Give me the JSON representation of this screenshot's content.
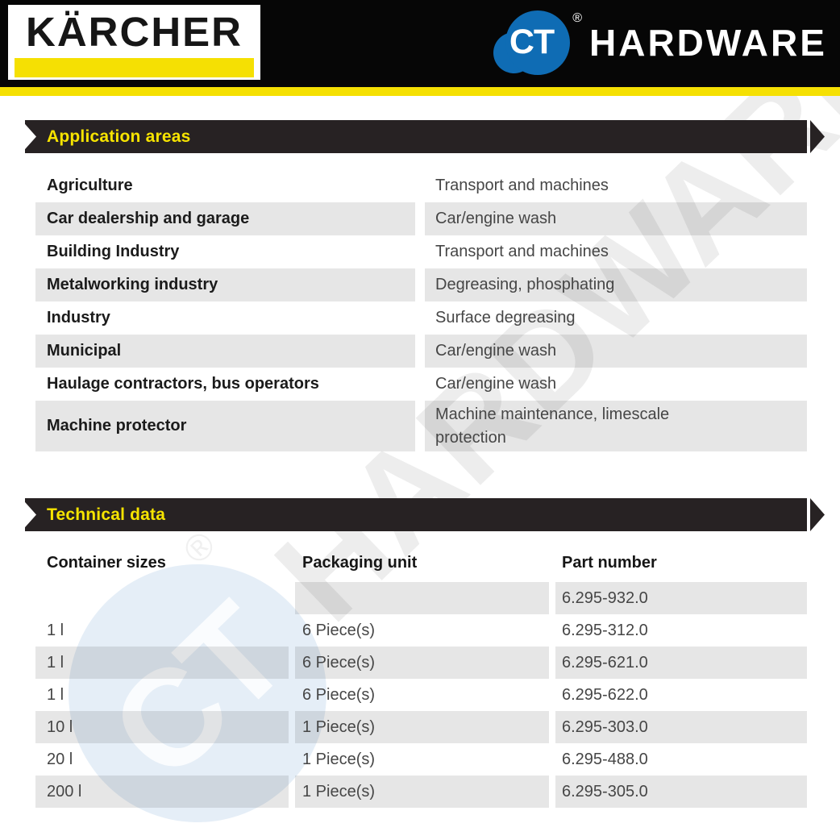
{
  "header": {
    "karcher": "KÄRCHER",
    "ct": "CT",
    "registered": "®",
    "hardware": "HARDWARE"
  },
  "application": {
    "title": "Application areas",
    "rows": [
      {
        "area": "Agriculture",
        "use": "Transport and machines"
      },
      {
        "area": "Car dealership and garage",
        "use": "Car/engine wash"
      },
      {
        "area": "Building Industry",
        "use": "Transport and machines"
      },
      {
        "area": "Metalworking industry",
        "use": "Degreasing, phosphating"
      },
      {
        "area": "Industry",
        "use": "Surface degreasing"
      },
      {
        "area": "Municipal",
        "use": "Car/engine wash"
      },
      {
        "area": "Haulage contractors, bus operators",
        "use": "Car/engine wash"
      },
      {
        "area": "Machine protector",
        "use": "Machine maintenance, limescale protection"
      }
    ]
  },
  "technical": {
    "title": "Technical data",
    "columns": [
      "Container sizes",
      "Packaging unit",
      "Part number"
    ],
    "rows": [
      {
        "size": "",
        "packaging": "",
        "part": "6.295-932.0"
      },
      {
        "size": "1 l",
        "packaging": "6 Piece(s)",
        "part": "6.295-312.0"
      },
      {
        "size": "1 l",
        "packaging": "6 Piece(s)",
        "part": "6.295-621.0"
      },
      {
        "size": "1 l",
        "packaging": "6 Piece(s)",
        "part": "6.295-622.0"
      },
      {
        "size": "10 l",
        "packaging": "1 Piece(s)",
        "part": "6.295-303.0"
      },
      {
        "size": "20 l",
        "packaging": "1 Piece(s)",
        "part": "6.295-488.0"
      },
      {
        "size": "200 l",
        "packaging": "1 Piece(s)",
        "part": "6.295-305.0"
      }
    ]
  },
  "watermark": {
    "ct": "CT",
    "text": "HARDWARE",
    "registered": "®"
  },
  "colors": {
    "karcher_yellow": "#f5e003",
    "banner_black": "#272223",
    "banner_yellow_text": "#f7e400",
    "ct_blue": "#0f6cb4",
    "row_gray": "#e6e6e6"
  }
}
